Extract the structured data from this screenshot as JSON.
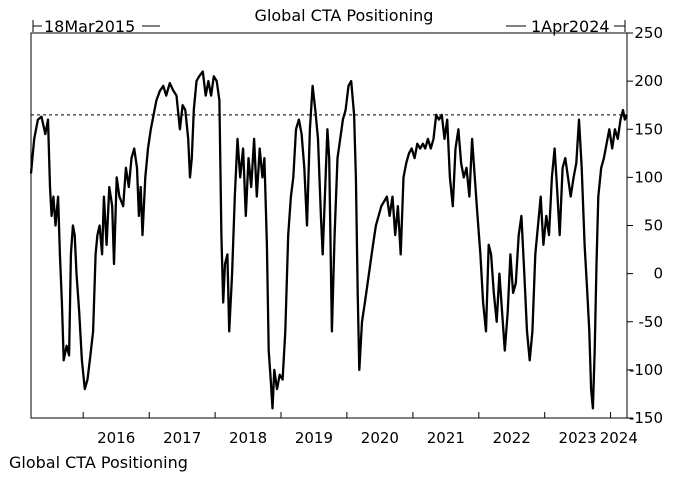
{
  "chart_data": {
    "type": "line",
    "title": "Global CTA Positioning",
    "footer_label": "Global CTA Positioning",
    "start_label": "18Mar2015",
    "end_label": "1Apr2024",
    "x_start": "2015-03-18",
    "x_end": "2024-04-01",
    "xlabel": "",
    "ylabel": "",
    "ylim": [
      -150,
      250
    ],
    "yticks": [
      250,
      200,
      150,
      100,
      50,
      0,
      -50,
      -100,
      -150
    ],
    "xtick_labels": [
      "2016",
      "2017",
      "2018",
      "2019",
      "2020",
      "2021",
      "2022",
      "2023",
      "2024"
    ],
    "reference_line": {
      "value": 165,
      "style": "dashed"
    },
    "grid": false,
    "series": [
      {
        "color": "#000000",
        "points": [
          [
            "2015-03-18",
            104
          ],
          [
            "2015-04-05",
            140
          ],
          [
            "2015-04-25",
            160
          ],
          [
            "2015-05-15",
            163
          ],
          [
            "2015-06-05",
            145
          ],
          [
            "2015-06-20",
            160
          ],
          [
            "2015-07-01",
            90
          ],
          [
            "2015-07-10",
            60
          ],
          [
            "2015-07-20",
            80
          ],
          [
            "2015-08-01",
            50
          ],
          [
            "2015-08-15",
            80
          ],
          [
            "2015-08-25",
            20
          ],
          [
            "2015-09-05",
            -30
          ],
          [
            "2015-09-15",
            -90
          ],
          [
            "2015-10-01",
            -75
          ],
          [
            "2015-10-15",
            -85
          ],
          [
            "2015-10-25",
            20
          ],
          [
            "2015-11-05",
            50
          ],
          [
            "2015-11-15",
            40
          ],
          [
            "2015-11-25",
            0
          ],
          [
            "2015-12-10",
            -40
          ],
          [
            "2015-12-25",
            -90
          ],
          [
            "2016-01-10",
            -120
          ],
          [
            "2016-01-25",
            -110
          ],
          [
            "2016-02-10",
            -85
          ],
          [
            "2016-02-25",
            -60
          ],
          [
            "2016-03-10",
            20
          ],
          [
            "2016-03-20",
            40
          ],
          [
            "2016-04-01",
            50
          ],
          [
            "2016-04-15",
            20
          ],
          [
            "2016-04-25",
            80
          ],
          [
            "2016-05-10",
            30
          ],
          [
            "2016-05-25",
            90
          ],
          [
            "2016-06-10",
            70
          ],
          [
            "2016-06-20",
            10
          ],
          [
            "2016-07-05",
            100
          ],
          [
            "2016-07-20",
            80
          ],
          [
            "2016-08-10",
            70
          ],
          [
            "2016-08-25",
            110
          ],
          [
            "2016-09-10",
            90
          ],
          [
            "2016-09-25",
            120
          ],
          [
            "2016-10-10",
            130
          ],
          [
            "2016-10-25",
            110
          ],
          [
            "2016-11-05",
            60
          ],
          [
            "2016-11-15",
            90
          ],
          [
            "2016-11-25",
            40
          ],
          [
            "2016-12-10",
            100
          ],
          [
            "2016-12-25",
            130
          ],
          [
            "2017-01-10",
            150
          ],
          [
            "2017-01-25",
            165
          ],
          [
            "2017-02-10",
            180
          ],
          [
            "2017-03-01",
            190
          ],
          [
            "2017-03-20",
            195
          ],
          [
            "2017-04-05",
            185
          ],
          [
            "2017-04-25",
            198
          ],
          [
            "2017-05-15",
            190
          ],
          [
            "2017-06-01",
            185
          ],
          [
            "2017-06-20",
            150
          ],
          [
            "2017-07-05",
            175
          ],
          [
            "2017-07-20",
            170
          ],
          [
            "2017-08-05",
            140
          ],
          [
            "2017-08-15",
            100
          ],
          [
            "2017-08-25",
            120
          ],
          [
            "2017-09-05",
            170
          ],
          [
            "2017-09-20",
            200
          ],
          [
            "2017-10-05",
            205
          ],
          [
            "2017-10-25",
            210
          ],
          [
            "2017-11-10",
            185
          ],
          [
            "2017-11-25",
            200
          ],
          [
            "2017-12-10",
            185
          ],
          [
            "2017-12-25",
            205
          ],
          [
            "2018-01-10",
            200
          ],
          [
            "2018-01-25",
            180
          ],
          [
            "2018-02-05",
            40
          ],
          [
            "2018-02-15",
            -30
          ],
          [
            "2018-02-25",
            10
          ],
          [
            "2018-03-10",
            20
          ],
          [
            "2018-03-20",
            -60
          ],
          [
            "2018-04-05",
            0
          ],
          [
            "2018-04-20",
            80
          ],
          [
            "2018-05-05",
            140
          ],
          [
            "2018-05-20",
            100
          ],
          [
            "2018-06-05",
            130
          ],
          [
            "2018-06-20",
            60
          ],
          [
            "2018-07-05",
            120
          ],
          [
            "2018-07-20",
            90
          ],
          [
            "2018-08-05",
            140
          ],
          [
            "2018-08-20",
            80
          ],
          [
            "2018-09-05",
            130
          ],
          [
            "2018-09-20",
            100
          ],
          [
            "2018-10-01",
            120
          ],
          [
            "2018-10-15",
            30
          ],
          [
            "2018-10-25",
            -80
          ],
          [
            "2018-11-05",
            -110
          ],
          [
            "2018-11-15",
            -140
          ],
          [
            "2018-11-25",
            -100
          ],
          [
            "2018-12-10",
            -120
          ],
          [
            "2018-12-25",
            -105
          ],
          [
            "2019-01-10",
            -110
          ],
          [
            "2019-01-25",
            -60
          ],
          [
            "2019-02-10",
            40
          ],
          [
            "2019-02-25",
            80
          ],
          [
            "2019-03-10",
            100
          ],
          [
            "2019-03-25",
            150
          ],
          [
            "2019-04-10",
            160
          ],
          [
            "2019-04-25",
            145
          ],
          [
            "2019-05-10",
            110
          ],
          [
            "2019-05-25",
            50
          ],
          [
            "2019-06-10",
            150
          ],
          [
            "2019-06-25",
            195
          ],
          [
            "2019-07-10",
            170
          ],
          [
            "2019-07-25",
            140
          ],
          [
            "2019-08-10",
            60
          ],
          [
            "2019-08-20",
            20
          ],
          [
            "2019-09-05",
            100
          ],
          [
            "2019-09-15",
            150
          ],
          [
            "2019-09-25",
            120
          ],
          [
            "2019-10-10",
            -60
          ],
          [
            "2019-10-25",
            40
          ],
          [
            "2019-11-10",
            120
          ],
          [
            "2019-11-25",
            140
          ],
          [
            "2019-12-10",
            160
          ],
          [
            "2019-12-25",
            170
          ],
          [
            "2020-01-10",
            195
          ],
          [
            "2020-01-25",
            200
          ],
          [
            "2020-02-10",
            165
          ],
          [
            "2020-02-20",
            100
          ],
          [
            "2020-03-01",
            -20
          ],
          [
            "2020-03-10",
            -100
          ],
          [
            "2020-03-25",
            -50
          ],
          [
            "2020-04-10",
            -30
          ],
          [
            "2020-04-25",
            -10
          ],
          [
            "2020-05-10",
            10
          ],
          [
            "2020-05-25",
            30
          ],
          [
            "2020-06-10",
            50
          ],
          [
            "2020-06-25",
            60
          ],
          [
            "2020-07-10",
            70
          ],
          [
            "2020-07-25",
            75
          ],
          [
            "2020-08-10",
            80
          ],
          [
            "2020-08-25",
            60
          ],
          [
            "2020-09-10",
            80
          ],
          [
            "2020-09-25",
            40
          ],
          [
            "2020-10-10",
            70
          ],
          [
            "2020-10-25",
            20
          ],
          [
            "2020-11-10",
            100
          ],
          [
            "2020-11-25",
            115
          ],
          [
            "2020-12-10",
            125
          ],
          [
            "2020-12-25",
            130
          ],
          [
            "2021-01-10",
            120
          ],
          [
            "2021-01-25",
            135
          ],
          [
            "2021-02-10",
            130
          ],
          [
            "2021-02-25",
            135
          ],
          [
            "2021-03-10",
            130
          ],
          [
            "2021-03-25",
            140
          ],
          [
            "2021-04-10",
            130
          ],
          [
            "2021-04-25",
            140
          ],
          [
            "2021-05-10",
            165
          ],
          [
            "2021-05-25",
            160
          ],
          [
            "2021-06-10",
            165
          ],
          [
            "2021-06-25",
            140
          ],
          [
            "2021-07-10",
            160
          ],
          [
            "2021-07-25",
            100
          ],
          [
            "2021-08-10",
            70
          ],
          [
            "2021-08-25",
            130
          ],
          [
            "2021-09-10",
            150
          ],
          [
            "2021-09-25",
            115
          ],
          [
            "2021-10-10",
            100
          ],
          [
            "2021-10-25",
            110
          ],
          [
            "2021-11-10",
            80
          ],
          [
            "2021-11-25",
            140
          ],
          [
            "2021-12-10",
            100
          ],
          [
            "2021-12-25",
            60
          ],
          [
            "2022-01-10",
            20
          ],
          [
            "2022-01-25",
            -30
          ],
          [
            "2022-02-10",
            -60
          ],
          [
            "2022-02-25",
            30
          ],
          [
            "2022-03-10",
            20
          ],
          [
            "2022-03-25",
            -20
          ],
          [
            "2022-04-10",
            -50
          ],
          [
            "2022-04-25",
            0
          ],
          [
            "2022-05-10",
            -40
          ],
          [
            "2022-05-25",
            -80
          ],
          [
            "2022-06-10",
            -40
          ],
          [
            "2022-06-25",
            20
          ],
          [
            "2022-07-10",
            -20
          ],
          [
            "2022-07-25",
            -10
          ],
          [
            "2022-08-10",
            40
          ],
          [
            "2022-08-25",
            60
          ],
          [
            "2022-09-10",
            0
          ],
          [
            "2022-09-25",
            -60
          ],
          [
            "2022-10-10",
            -90
          ],
          [
            "2022-10-25",
            -60
          ],
          [
            "2022-11-10",
            20
          ],
          [
            "2022-11-25",
            50
          ],
          [
            "2022-12-10",
            80
          ],
          [
            "2022-12-25",
            30
          ],
          [
            "2023-01-10",
            60
          ],
          [
            "2023-01-25",
            40
          ],
          [
            "2023-02-10",
            100
          ],
          [
            "2023-02-25",
            130
          ],
          [
            "2023-03-10",
            90
          ],
          [
            "2023-03-25",
            40
          ],
          [
            "2023-04-10",
            110
          ],
          [
            "2023-04-25",
            120
          ],
          [
            "2023-05-10",
            100
          ],
          [
            "2023-05-25",
            80
          ],
          [
            "2023-06-10",
            100
          ],
          [
            "2023-06-25",
            115
          ],
          [
            "2023-07-10",
            160
          ],
          [
            "2023-07-25",
            110
          ],
          [
            "2023-08-10",
            30
          ],
          [
            "2023-08-25",
            -20
          ],
          [
            "2023-09-05",
            -60
          ],
          [
            "2023-09-15",
            -120
          ],
          [
            "2023-09-25",
            -140
          ],
          [
            "2023-10-05",
            -80
          ],
          [
            "2023-10-15",
            10
          ],
          [
            "2023-10-25",
            80
          ],
          [
            "2023-11-10",
            110
          ],
          [
            "2023-11-25",
            120
          ],
          [
            "2023-12-10",
            135
          ],
          [
            "2023-12-25",
            150
          ],
          [
            "2024-01-10",
            130
          ],
          [
            "2024-01-25",
            150
          ],
          [
            "2024-02-10",
            140
          ],
          [
            "2024-02-25",
            160
          ],
          [
            "2024-03-10",
            170
          ],
          [
            "2024-03-20",
            160
          ],
          [
            "2024-04-01",
            165
          ]
        ]
      }
    ]
  }
}
